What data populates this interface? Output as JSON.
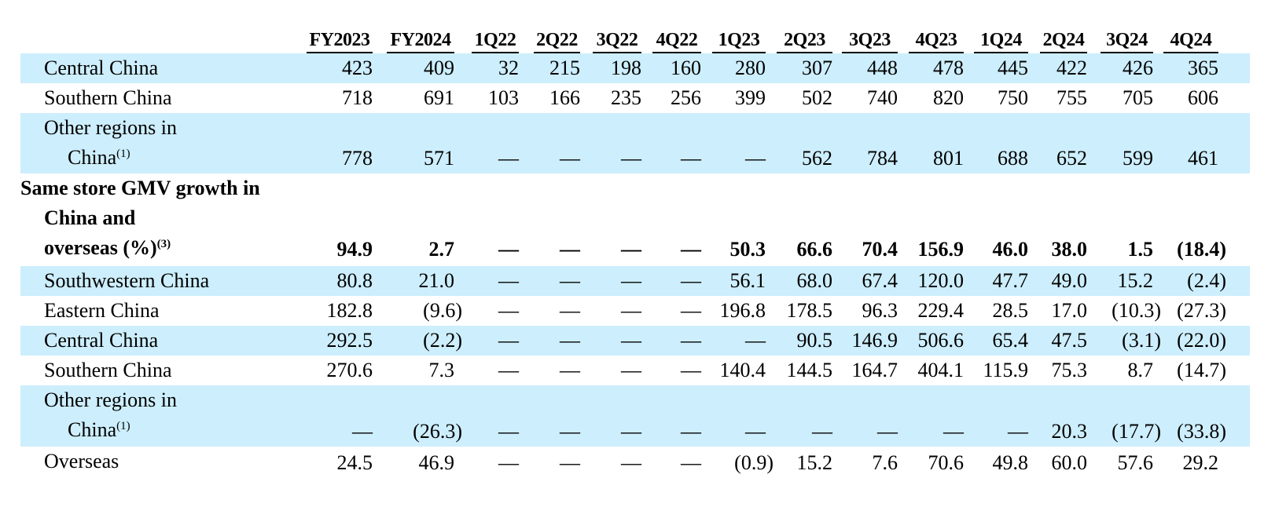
{
  "columns": [
    "FY2023",
    "FY2024",
    "1Q22",
    "2Q22",
    "3Q22",
    "4Q22",
    "1Q23",
    "2Q23",
    "3Q23",
    "4Q23",
    "1Q24",
    "2Q24",
    "3Q24",
    "4Q24"
  ],
  "rows": [
    {
      "label": [
        "Central China"
      ],
      "sup": "",
      "shade": true,
      "bold": false,
      "values": [
        "423",
        "409",
        "32",
        "215",
        "198",
        "160",
        "280",
        "307",
        "448",
        "478",
        "445",
        "422",
        "426",
        "365"
      ]
    },
    {
      "label": [
        "Southern China"
      ],
      "sup": "",
      "shade": false,
      "bold": false,
      "values": [
        "718",
        "691",
        "103",
        "166",
        "235",
        "256",
        "399",
        "502",
        "740",
        "820",
        "750",
        "755",
        "705",
        "606"
      ]
    },
    {
      "label": [
        "Other regions in",
        "China"
      ],
      "sup": "(1)",
      "shade": true,
      "bold": false,
      "values": [
        "778",
        "571",
        "—",
        "—",
        "—",
        "—",
        "—",
        "562",
        "784",
        "801",
        "688",
        "652",
        "599",
        "461"
      ]
    },
    {
      "label": [
        "Same store GMV growth in",
        "China and",
        "overseas (%)"
      ],
      "sup": "(3)",
      "shade": false,
      "bold": true,
      "values": [
        "94.9",
        "2.7",
        "—",
        "—",
        "—",
        "—",
        "50.3",
        "66.6",
        "70.4",
        "156.9",
        "46.0",
        "38.0",
        "1.5",
        "(18.4)"
      ]
    },
    {
      "label": [
        "Southwestern China"
      ],
      "sup": "",
      "shade": true,
      "bold": false,
      "values": [
        "80.8",
        "21.0",
        "—",
        "—",
        "—",
        "—",
        "56.1",
        "68.0",
        "67.4",
        "120.0",
        "47.7",
        "49.0",
        "15.2",
        "(2.4)"
      ]
    },
    {
      "label": [
        "Eastern China"
      ],
      "sup": "",
      "shade": false,
      "bold": false,
      "values": [
        "182.8",
        "(9.6)",
        "—",
        "—",
        "—",
        "—",
        "196.8",
        "178.5",
        "96.3",
        "229.4",
        "28.5",
        "17.0",
        "(10.3)",
        "(27.3)"
      ]
    },
    {
      "label": [
        "Central China"
      ],
      "sup": "",
      "shade": true,
      "bold": false,
      "values": [
        "292.5",
        "(2.2)",
        "—",
        "—",
        "—",
        "—",
        "—",
        "90.5",
        "146.9",
        "506.6",
        "65.4",
        "47.5",
        "(3.1)",
        "(22.0)"
      ]
    },
    {
      "label": [
        "Southern China"
      ],
      "sup": "",
      "shade": false,
      "bold": false,
      "values": [
        "270.6",
        "7.3",
        "—",
        "—",
        "—",
        "—",
        "140.4",
        "144.5",
        "164.7",
        "404.1",
        "115.9",
        "75.3",
        "8.7",
        "(14.7)"
      ]
    },
    {
      "label": [
        "Other regions in",
        "China"
      ],
      "sup": "(1)",
      "shade": true,
      "bold": false,
      "values": [
        "—",
        "(26.3)",
        "—",
        "—",
        "—",
        "—",
        "—",
        "—",
        "—",
        "—",
        "—",
        "20.3",
        "(17.7)",
        "(33.8)"
      ]
    },
    {
      "label": [
        "Overseas"
      ],
      "sup": "",
      "shade": false,
      "bold": false,
      "values": [
        "24.5",
        "46.9",
        "—",
        "—",
        "—",
        "—",
        "(0.9)",
        "15.2",
        "7.6",
        "70.6",
        "49.8",
        "60.0",
        "57.6",
        "29.2"
      ]
    }
  ]
}
